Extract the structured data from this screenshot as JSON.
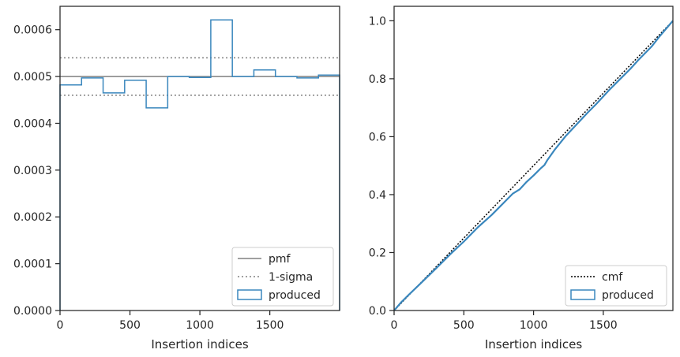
{
  "chart_data": [
    {
      "type": "step",
      "xlabel": "Insertion indices",
      "ylabel": "",
      "xlim": [
        0,
        1999
      ],
      "ylim": [
        0,
        0.00065
      ],
      "x_ticks": [
        0,
        500,
        1000,
        1500
      ],
      "x_tick_labels": [
        "0",
        "500",
        "1000",
        "1500"
      ],
      "y_ticks": [
        0,
        0.0001,
        0.0002,
        0.0003,
        0.0004,
        0.0005,
        0.0006
      ],
      "y_tick_labels": [
        "0.0000",
        "0.0001",
        "0.0002",
        "0.0003",
        "0.0004",
        "0.0005",
        "0.0006"
      ],
      "legend": {
        "placement": "lower right",
        "entries": [
          {
            "label": "pmf",
            "style": "solid-gray"
          },
          {
            "label": "1-sigma",
            "style": "dotted-gray"
          },
          {
            "label": "produced",
            "style": "blue-box"
          }
        ]
      },
      "reference_lines": {
        "pmf": 0.0005,
        "sigma_upper": 0.00054,
        "sigma_lower": 0.00046
      },
      "series": [
        {
          "name": "produced",
          "bin_edges": [
            0,
            154,
            308,
            462,
            616,
            770,
            924,
            1078,
            1232,
            1386,
            1540,
            1694,
            1848,
            1999
          ],
          "values": [
            0.000482,
            0.000497,
            0.000465,
            0.000492,
            0.000433,
            0.0005,
            0.000498,
            0.000621,
            0.0005,
            0.000514,
            0.0005,
            0.000497,
            0.000503
          ]
        }
      ],
      "colors": {
        "produced": "#3a87bd",
        "pmf": "#808080",
        "sigma": "#808080"
      }
    },
    {
      "type": "line",
      "xlabel": "Insertion indices",
      "ylabel": "",
      "xlim": [
        0,
        1999
      ],
      "ylim": [
        0,
        1.05
      ],
      "x_ticks": [
        0,
        500,
        1000,
        1500
      ],
      "x_tick_labels": [
        "0",
        "500",
        "1000",
        "1500"
      ],
      "y_ticks": [
        0,
        0.2,
        0.4,
        0.6,
        0.8,
        1.0
      ],
      "y_tick_labels": [
        "0.0",
        "0.2",
        "0.4",
        "0.6",
        "0.8",
        "1.0"
      ],
      "legend": {
        "placement": "lower right",
        "entries": [
          {
            "label": "cmf",
            "style": "dotted-black"
          },
          {
            "label": "produced",
            "style": "blue-box"
          }
        ]
      },
      "series": [
        {
          "name": "cmf",
          "x": [
            0,
            1999
          ],
          "y": [
            0,
            1.0
          ]
        },
        {
          "name": "produced",
          "x": [
            0,
            50,
            100,
            150,
            200,
            300,
            400,
            500,
            600,
            700,
            770,
            850,
            900,
            950,
            1000,
            1050,
            1078,
            1100,
            1150,
            1232,
            1300,
            1386,
            1450,
            1540,
            1600,
            1694,
            1750,
            1848,
            1900,
            1999
          ],
          "y": [
            0,
            0.028,
            0.052,
            0.075,
            0.098,
            0.145,
            0.193,
            0.238,
            0.287,
            0.33,
            0.364,
            0.403,
            0.418,
            0.444,
            0.466,
            0.49,
            0.502,
            0.52,
            0.554,
            0.603,
            0.638,
            0.682,
            0.713,
            0.76,
            0.789,
            0.834,
            0.864,
            0.912,
            0.944,
            1.0
          ]
        }
      ],
      "colors": {
        "produced": "#3a87bd",
        "cmf": "#000000"
      }
    }
  ]
}
